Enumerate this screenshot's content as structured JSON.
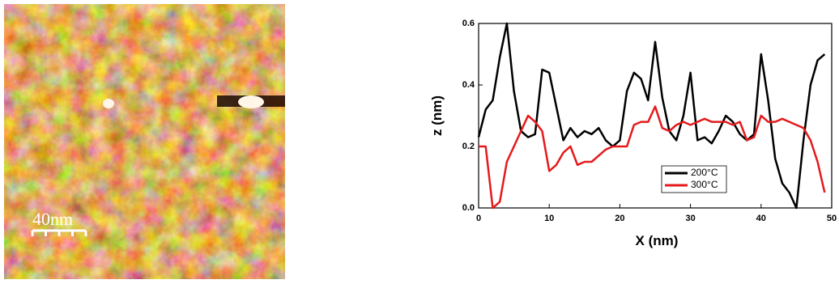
{
  "image": {
    "scale_label": "40nm"
  },
  "chart_data": {
    "type": "line",
    "xlabel": "X (nm)",
    "ylabel": "z (nm)",
    "x": [
      0,
      1,
      2,
      3,
      4,
      5,
      6,
      7,
      8,
      9,
      10,
      11,
      12,
      13,
      14,
      15,
      16,
      17,
      18,
      19,
      20,
      21,
      22,
      23,
      24,
      25,
      26,
      27,
      28,
      29,
      30,
      31,
      32,
      33,
      34,
      35,
      36,
      37,
      38,
      39,
      40,
      41,
      42,
      43,
      44,
      45,
      46,
      47,
      48,
      49
    ],
    "series": [
      {
        "name": "200°C",
        "color": "#000000",
        "values": [
          0.23,
          0.32,
          0.35,
          0.49,
          0.6,
          0.38,
          0.25,
          0.23,
          0.24,
          0.45,
          0.44,
          0.33,
          0.22,
          0.26,
          0.23,
          0.25,
          0.24,
          0.26,
          0.22,
          0.2,
          0.22,
          0.38,
          0.44,
          0.42,
          0.35,
          0.54,
          0.36,
          0.25,
          0.22,
          0.3,
          0.44,
          0.22,
          0.23,
          0.21,
          0.25,
          0.3,
          0.28,
          0.24,
          0.22,
          0.24,
          0.5,
          0.35,
          0.16,
          0.08,
          0.05,
          0.0,
          0.22,
          0.4,
          0.48,
          0.5
        ]
      },
      {
        "name": "300°C",
        "color": "#e41a1c",
        "values": [
          0.2,
          0.2,
          0.0,
          0.02,
          0.15,
          0.2,
          0.25,
          0.3,
          0.28,
          0.25,
          0.12,
          0.14,
          0.18,
          0.2,
          0.14,
          0.15,
          0.15,
          0.17,
          0.19,
          0.2,
          0.2,
          0.2,
          0.27,
          0.28,
          0.28,
          0.33,
          0.26,
          0.25,
          0.27,
          0.28,
          0.27,
          0.28,
          0.29,
          0.28,
          0.28,
          0.28,
          0.27,
          0.28,
          0.22,
          0.23,
          0.3,
          0.28,
          0.28,
          0.29,
          0.28,
          0.27,
          0.26,
          0.22,
          0.15,
          0.05
        ]
      }
    ],
    "xlim": [
      0,
      50
    ],
    "xticks": [
      0,
      10,
      20,
      30,
      40,
      50
    ],
    "ylim": [
      0,
      0.6
    ],
    "yticks": [
      {
        "value": 0,
        "label": "0.0"
      },
      0.2,
      0.4,
      0.6
    ],
    "legend": "lower-center"
  }
}
